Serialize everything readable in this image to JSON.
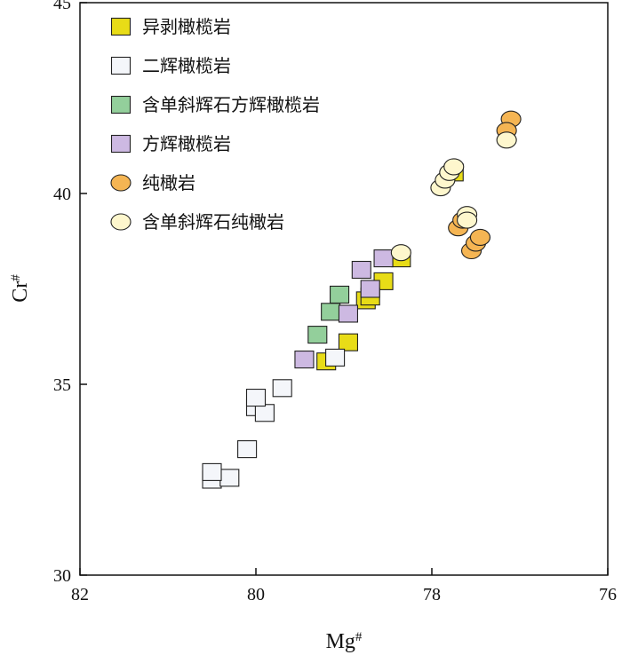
{
  "chart_data": {
    "type": "scatter",
    "title": "",
    "xlabel": "Mg#",
    "ylabel": "Cr#",
    "xlim": [
      82,
      76
    ],
    "ylim": [
      30,
      45
    ],
    "x_reversed": true,
    "x_ticks": [
      "82",
      "80",
      "78",
      "76"
    ],
    "y_ticks": [
      "30",
      "35",
      "40",
      "45"
    ],
    "legend_position": "top-left",
    "series": [
      {
        "name": "异剥橄榄岩",
        "marker": "square",
        "color": "#e8dc17",
        "points": [
          [
            78.35,
            38.3
          ],
          [
            78.75,
            37.2
          ],
          [
            78.55,
            37.7
          ],
          [
            78.7,
            37.3
          ],
          [
            78.95,
            36.1
          ],
          [
            79.2,
            35.6
          ],
          [
            77.75,
            40.55
          ]
        ]
      },
      {
        "name": "二辉橄榄岩",
        "marker": "square",
        "color": "#f4f6fa",
        "points": [
          [
            80.5,
            32.5
          ],
          [
            80.3,
            32.55
          ],
          [
            80.5,
            32.7
          ],
          [
            80.1,
            33.3
          ],
          [
            80.0,
            34.4
          ],
          [
            79.9,
            34.25
          ],
          [
            80.0,
            34.65
          ],
          [
            79.7,
            34.9
          ],
          [
            79.1,
            35.7
          ]
        ]
      },
      {
        "name": "含单斜辉石方辉橄榄岩",
        "marker": "square",
        "color": "#93cf9b",
        "points": [
          [
            79.3,
            36.3
          ],
          [
            79.15,
            36.9
          ],
          [
            79.05,
            37.35
          ]
        ]
      },
      {
        "name": "方辉橄榄岩",
        "marker": "square",
        "color": "#cdb9e2",
        "points": [
          [
            79.45,
            35.65
          ],
          [
            78.95,
            36.85
          ],
          [
            78.7,
            37.5
          ],
          [
            78.8,
            38.0
          ],
          [
            78.55,
            38.3
          ]
        ]
      },
      {
        "name": "纯橄岩",
        "marker": "circle",
        "color": "#f5b553",
        "points": [
          [
            77.1,
            41.95
          ],
          [
            77.15,
            41.65
          ],
          [
            77.7,
            39.1
          ],
          [
            77.65,
            39.3
          ],
          [
            77.55,
            38.5
          ],
          [
            77.5,
            38.7
          ],
          [
            77.45,
            38.85
          ]
        ]
      },
      {
        "name": "含单斜辉石纯橄岩",
        "marker": "circle",
        "color": "#fef7cd",
        "points": [
          [
            77.15,
            41.4
          ],
          [
            77.9,
            40.15
          ],
          [
            77.85,
            40.35
          ],
          [
            77.8,
            40.55
          ],
          [
            77.75,
            40.7
          ],
          [
            77.6,
            39.45
          ],
          [
            77.6,
            39.3
          ],
          [
            78.35,
            38.45
          ]
        ]
      }
    ]
  }
}
